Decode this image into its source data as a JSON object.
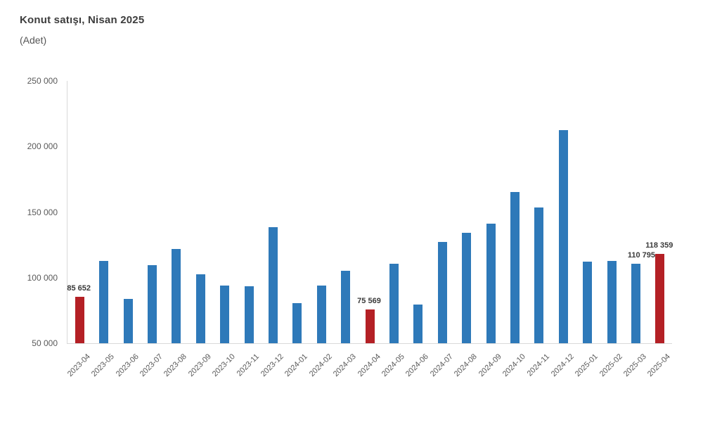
{
  "header": {
    "title": "Konut satışı, Nisan 2025",
    "subtitle": "(Adet)"
  },
  "chart_data": {
    "type": "bar",
    "title": "Konut satışı, Nisan 2025",
    "subtitle": "(Adet)",
    "ylabel": "Adet",
    "xlabel": "",
    "grid": false,
    "legend": false,
    "ylim": [
      50000,
      250000
    ],
    "y_ticks": [
      "250 000",
      "200 000",
      "150 000",
      "100 000",
      "50 000"
    ],
    "y_tick_values": [
      250000,
      200000,
      150000,
      100000,
      50000
    ],
    "categories": [
      "2023-04",
      "2023-05",
      "2023-06",
      "2023-07",
      "2023-08",
      "2023-09",
      "2023-10",
      "2023-11",
      "2023-12",
      "2024-01",
      "2024-02",
      "2024-03",
      "2024-04",
      "2024-05",
      "2024-06",
      "2024-07",
      "2024-08",
      "2024-09",
      "2024-10",
      "2024-11",
      "2024-12",
      "2025-01",
      "2025-02",
      "2025-03",
      "2025-04"
    ],
    "values": [
      85652,
      112558,
      83636,
      109548,
      122091,
      102656,
      93761,
      93514,
      138577,
      80308,
      93902,
      105476,
      75569,
      110588,
      79313,
      127088,
      134155,
      140919,
      165138,
      153411,
      212637,
      112173,
      112818,
      110795,
      118359
    ],
    "highlight_indices": [
      0,
      12,
      24
    ],
    "data_labels": {
      "0": "85 652",
      "12": "75 569",
      "23": "110 795",
      "24": "118 359"
    },
    "colors": {
      "bar": "#2E79B9",
      "highlight": "#B42025",
      "axis_line": "#D9D9D9",
      "tick_text": "#595959",
      "title_text": "#3D3D3D",
      "data_label_text": "#3A3A3A",
      "background": "#FFFFFF"
    }
  }
}
